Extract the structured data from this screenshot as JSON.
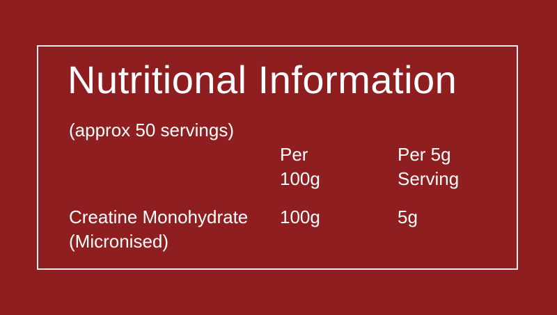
{
  "title": "Nutritional Information",
  "subtitle": "(approx 50 servings)",
  "columns": [
    "Per\n100g",
    "Per 5g\nServing"
  ],
  "column_lines": [
    [
      "Per",
      "100g"
    ],
    [
      "Per 5g",
      "Serving"
    ]
  ],
  "rows": [
    {
      "name_lines": [
        "Creatine Monohydrate",
        "(Micronised)"
      ],
      "per_100g": "100g",
      "per_serving": "5g"
    }
  ],
  "colors": {
    "background": "#8f1e20",
    "text": "#ffffff",
    "border": "#f4eeee"
  }
}
